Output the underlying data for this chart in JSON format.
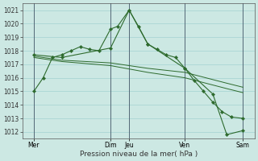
{
  "bg_color": "#cce8e3",
  "plot_bg_color": "#cce8e3",
  "grid_color": "#99cccc",
  "line_color": "#2d6a2d",
  "xlabel": "Pression niveau de la mer( hPa )",
  "xlabel_fontsize": 6.5,
  "tick_fontsize": 5.5,
  "ylim_min": 1011.5,
  "ylim_max": 1021.5,
  "yticks": [
    1012,
    1013,
    1014,
    1015,
    1016,
    1017,
    1018,
    1019,
    1020,
    1021
  ],
  "xlim_min": 0,
  "xlim_max": 10.0,
  "xtick_pos": [
    0.5,
    3.8,
    4.6,
    7.0,
    9.5
  ],
  "xtick_labels": [
    "Mer",
    "Dim",
    "Jeu",
    "Ven",
    "Sam"
  ],
  "vlines_x": [
    0.5,
    3.8,
    4.6,
    7.0,
    9.5
  ],
  "series1_x": [
    0.5,
    0.9,
    1.3,
    1.7,
    2.1,
    2.5,
    2.9,
    3.3,
    3.8,
    4.1,
    4.6,
    5.0,
    5.4,
    5.8,
    6.2,
    6.6,
    7.0,
    7.4,
    7.8,
    8.2,
    8.6,
    9.0,
    9.5
  ],
  "series1_y": [
    1015.0,
    1016.0,
    1017.5,
    1017.7,
    1018.0,
    1018.3,
    1018.1,
    1018.0,
    1019.6,
    1019.8,
    1021.0,
    1019.8,
    1018.5,
    1018.1,
    1017.7,
    1017.5,
    1016.7,
    1015.8,
    1015.0,
    1014.2,
    1013.5,
    1013.1,
    1013.0
  ],
  "series2_x": [
    0.5,
    1.7,
    3.8,
    4.6,
    5.4,
    7.0,
    8.2,
    8.8,
    9.5
  ],
  "series2_y": [
    1017.7,
    1017.5,
    1018.2,
    1021.0,
    1018.5,
    1016.7,
    1014.8,
    1011.8,
    1012.1
  ],
  "series3_x": [
    0.5,
    1.7,
    3.8,
    5.4,
    7.0,
    8.8,
    9.5
  ],
  "series3_y": [
    1017.6,
    1017.3,
    1017.1,
    1016.7,
    1016.4,
    1015.6,
    1015.3
  ],
  "series4_x": [
    0.5,
    1.7,
    3.8,
    5.4,
    7.0,
    8.8,
    9.5
  ],
  "series4_y": [
    1017.5,
    1017.2,
    1016.9,
    1016.4,
    1016.0,
    1015.2,
    1014.9
  ]
}
